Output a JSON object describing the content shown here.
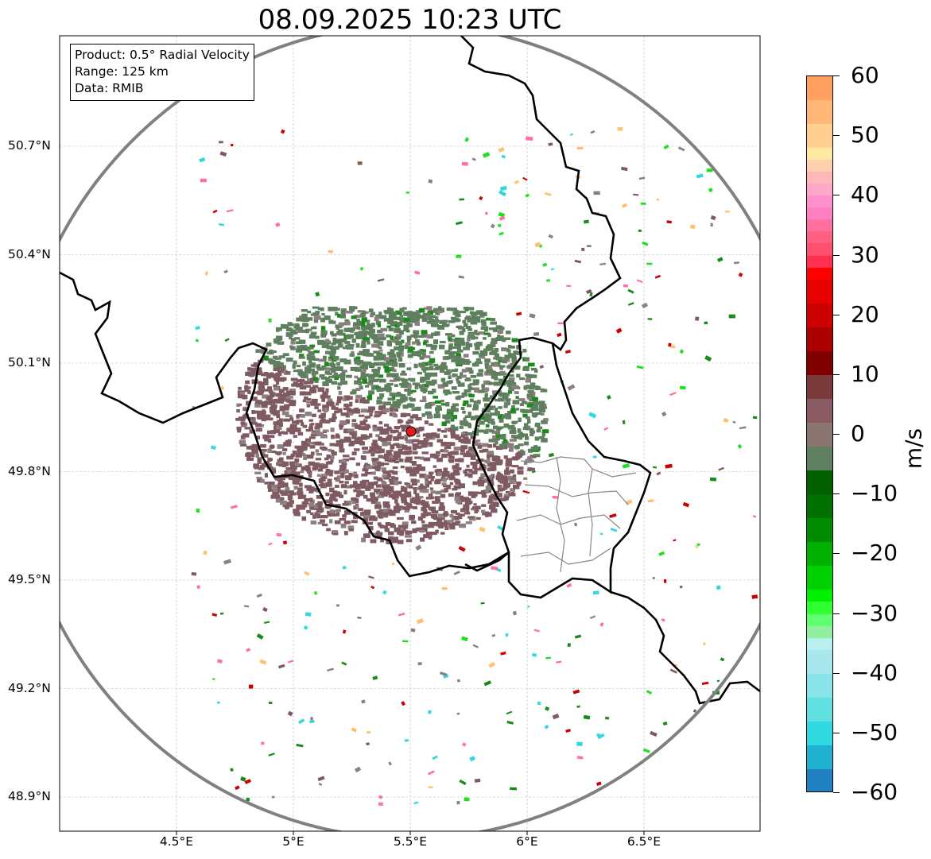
{
  "title": "08.09.2025 10:23 UTC",
  "info": {
    "product": "Product: 0.5° Radial Velocity",
    "range": "Range: 125 km",
    "data": "Data: RMIB"
  },
  "map": {
    "lon_range": [
      4.0,
      7.0
    ],
    "lat_range": [
      48.8,
      51.0
    ],
    "radar_site": {
      "lon": 5.505,
      "lat": 49.914
    },
    "range_ring_km": 125,
    "lat_ticks": [
      {
        "value": 50.7,
        "label": "50.7°N"
      },
      {
        "value": 50.4,
        "label": "50.4°N"
      },
      {
        "value": 50.1,
        "label": "50.1°N"
      },
      {
        "value": 49.8,
        "label": "49.8°N"
      },
      {
        "value": 49.5,
        "label": "49.5°N"
      },
      {
        "value": 49.2,
        "label": "49.2°N"
      },
      {
        "value": 48.9,
        "label": "48.9°N"
      }
    ],
    "lon_ticks": [
      {
        "value": 4.5,
        "label": "4.5°E"
      },
      {
        "value": 5.0,
        "label": "5°E"
      },
      {
        "value": 5.5,
        "label": "5.5°E"
      },
      {
        "value": 6.0,
        "label": "6°E"
      },
      {
        "value": 6.5,
        "label": "6.5°E"
      }
    ],
    "colors": {
      "border": "#000000",
      "range_ring": "#808080",
      "provinces": "#888888",
      "grid": "#bbbbbb",
      "site_marker": "#e41a1c"
    }
  },
  "colorbar": {
    "unit": "m/s",
    "min": -60,
    "max": 60,
    "ticks": [
      {
        "value": 60,
        "label": "60"
      },
      {
        "value": 50,
        "label": "50"
      },
      {
        "value": 40,
        "label": "40"
      },
      {
        "value": 30,
        "label": "30"
      },
      {
        "value": 20,
        "label": "20"
      },
      {
        "value": 10,
        "label": "10"
      },
      {
        "value": 0,
        "label": "0"
      },
      {
        "value": -10,
        "label": "−10"
      },
      {
        "value": -20,
        "label": "−20"
      },
      {
        "value": -30,
        "label": "−30"
      },
      {
        "value": -40,
        "label": "−40"
      },
      {
        "value": -50,
        "label": "−50"
      },
      {
        "value": -60,
        "label": "−60"
      }
    ],
    "bands": [
      {
        "from": 56,
        "to": 60,
        "color": "#ffa060"
      },
      {
        "from": 52,
        "to": 56,
        "color": "#ffb878"
      },
      {
        "from": 48,
        "to": 52,
        "color": "#ffd090"
      },
      {
        "from": 46,
        "to": 48,
        "color": "#ffe8a0"
      },
      {
        "from": 44,
        "to": 46,
        "color": "#ffd0b0"
      },
      {
        "from": 42,
        "to": 44,
        "color": "#ffb8b8"
      },
      {
        "from": 40,
        "to": 42,
        "color": "#ffa8c8"
      },
      {
        "from": 38,
        "to": 40,
        "color": "#ff90d0"
      },
      {
        "from": 36,
        "to": 38,
        "color": "#ff80c0"
      },
      {
        "from": 34,
        "to": 36,
        "color": "#ff70a0"
      },
      {
        "from": 32,
        "to": 34,
        "color": "#ff6080"
      },
      {
        "from": 30,
        "to": 32,
        "color": "#ff5070"
      },
      {
        "from": 28,
        "to": 30,
        "color": "#ff3050"
      },
      {
        "from": 26,
        "to": 28,
        "color": "#ff0000"
      },
      {
        "from": 22,
        "to": 26,
        "color": "#e60000"
      },
      {
        "from": 18,
        "to": 22,
        "color": "#cc0000"
      },
      {
        "from": 14,
        "to": 18,
        "color": "#aa0000"
      },
      {
        "from": 10,
        "to": 14,
        "color": "#800000"
      },
      {
        "from": 6,
        "to": 10,
        "color": "#7a3a3a"
      },
      {
        "from": 2,
        "to": 6,
        "color": "#8a5a62"
      },
      {
        "from": -2,
        "to": 2,
        "color": "#8a7570"
      },
      {
        "from": -6,
        "to": -2,
        "color": "#5f8060"
      },
      {
        "from": -10,
        "to": -6,
        "color": "#006000"
      },
      {
        "from": -14,
        "to": -10,
        "color": "#007000"
      },
      {
        "from": -18,
        "to": -14,
        "color": "#008c00"
      },
      {
        "from": -22,
        "to": -18,
        "color": "#00b000"
      },
      {
        "from": -26,
        "to": -22,
        "color": "#00d000"
      },
      {
        "from": -28,
        "to": -26,
        "color": "#00f000"
      },
      {
        "from": -30,
        "to": -28,
        "color": "#30ff30"
      },
      {
        "from": -32,
        "to": -30,
        "color": "#60ff70"
      },
      {
        "from": -34,
        "to": -32,
        "color": "#90f0a0"
      },
      {
        "from": -36,
        "to": -34,
        "color": "#b8f0f0"
      },
      {
        "from": -40,
        "to": -36,
        "color": "#a8e8ec"
      },
      {
        "from": -44,
        "to": -40,
        "color": "#88e4e8"
      },
      {
        "from": -48,
        "to": -44,
        "color": "#60e0e0"
      },
      {
        "from": -52,
        "to": -48,
        "color": "#30d8e0"
      },
      {
        "from": -56,
        "to": -52,
        "color": "#20b0d0"
      },
      {
        "from": -60,
        "to": -56,
        "color": "#2080c0"
      }
    ]
  },
  "echo": {
    "palette": {
      "approach_dense": "#5f7f5f",
      "approach_strong": "#1a8a1a",
      "recede_dense": "#7f5a62",
      "recede_light": "#8d7f80",
      "strong_recede": "#cc0000",
      "strong_approach": "#20e020",
      "pink": "#ff70a0",
      "cyan": "#30d8e0",
      "orange": "#ffc070"
    }
  }
}
